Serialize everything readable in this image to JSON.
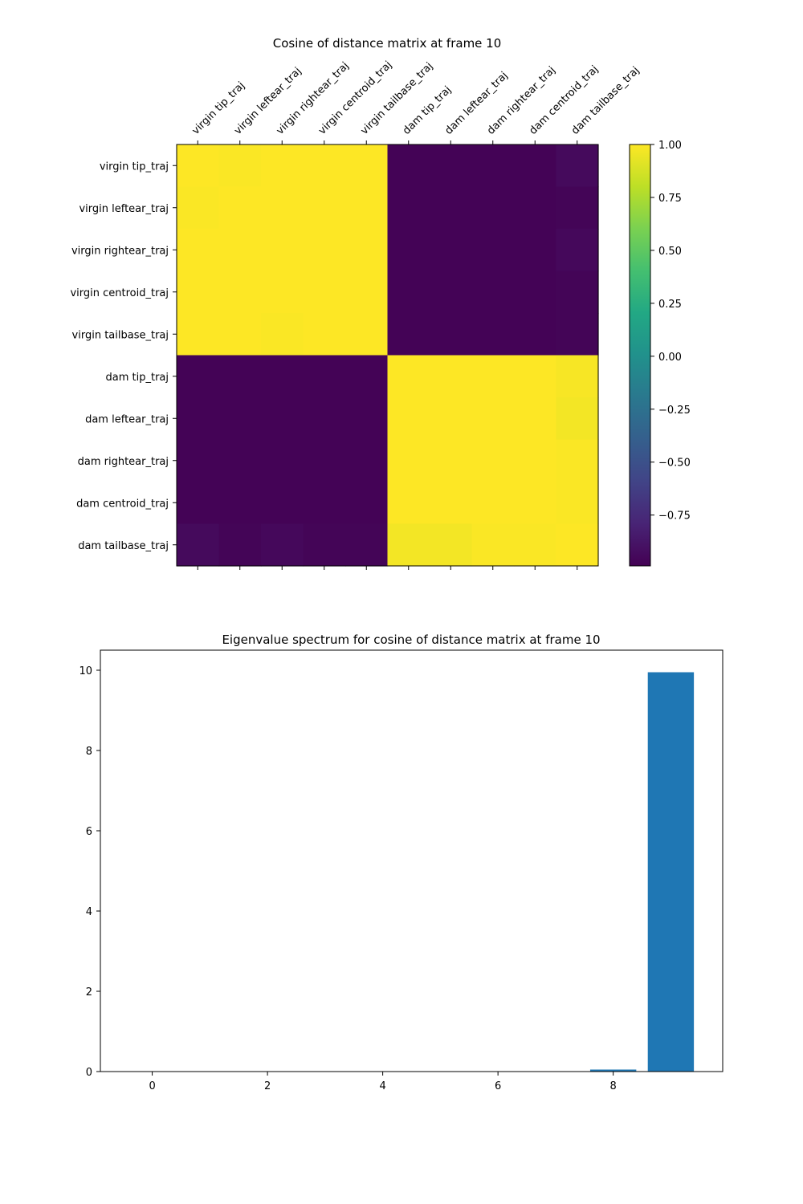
{
  "chart_data": [
    {
      "type": "heatmap",
      "title": "Cosine of distance matrix at frame 10",
      "labels": [
        "virgin tip_traj",
        "virgin leftear_traj",
        "virgin rightear_traj",
        "virgin centroid_traj",
        "virgin tailbase_traj",
        "dam tip_traj",
        "dam leftear_traj",
        "dam rightear_traj",
        "dam centroid_traj",
        "dam tailbase_traj"
      ],
      "matrix": [
        [
          1.0,
          0.99,
          1.0,
          1.0,
          1.0,
          -0.99,
          -0.99,
          -0.99,
          -0.99,
          -0.95
        ],
        [
          0.99,
          1.0,
          1.0,
          1.0,
          1.0,
          -0.99,
          -0.99,
          -0.99,
          -0.99,
          -0.98
        ],
        [
          1.0,
          1.0,
          1.0,
          1.0,
          1.0,
          -0.99,
          -0.99,
          -0.99,
          -0.99,
          -0.96
        ],
        [
          1.0,
          1.0,
          1.0,
          1.0,
          1.0,
          -0.99,
          -0.99,
          -0.99,
          -0.99,
          -0.98
        ],
        [
          1.0,
          1.0,
          0.99,
          1.0,
          1.0,
          -0.99,
          -0.99,
          -0.99,
          -0.99,
          -0.98
        ],
        [
          -0.99,
          -0.99,
          -0.99,
          -0.99,
          -0.99,
          1.0,
          1.0,
          1.0,
          1.0,
          0.98
        ],
        [
          -0.99,
          -0.99,
          -0.99,
          -0.99,
          -0.99,
          1.0,
          1.0,
          1.0,
          1.0,
          0.97
        ],
        [
          -0.99,
          -0.99,
          -0.99,
          -0.99,
          -0.99,
          1.0,
          1.0,
          1.0,
          1.0,
          0.99
        ],
        [
          -0.99,
          -0.99,
          -0.99,
          -0.99,
          -0.99,
          1.0,
          1.0,
          1.0,
          1.0,
          0.99
        ],
        [
          -0.95,
          -0.98,
          -0.96,
          -0.98,
          -0.98,
          0.97,
          0.97,
          0.99,
          0.99,
          1.0
        ]
      ],
      "colormap": "viridis",
      "vmin": -1.0,
      "vmax": 1.0,
      "colorbar_ticks": [
        1.0,
        0.75,
        0.5,
        0.25,
        0.0,
        -0.25,
        -0.5,
        -0.75
      ],
      "colorbar_tick_labels": [
        "1.00",
        "0.75",
        "0.50",
        "0.25",
        "0.00",
        "−0.25",
        "−0.50",
        "−0.75"
      ],
      "x_tick_position": "top",
      "grid": false
    },
    {
      "type": "bar",
      "title": "Eigenvalue spectrum for cosine of distance matrix at frame 10",
      "x": [
        0,
        1,
        2,
        3,
        4,
        5,
        6,
        7,
        8,
        9
      ],
      "values": [
        0,
        0,
        0,
        0,
        0,
        0,
        0,
        0,
        0.05,
        9.95
      ],
      "xlim": [
        -0.9,
        9.9
      ],
      "ylim": [
        0,
        10.5
      ],
      "xticks": [
        0,
        2,
        4,
        6,
        8
      ],
      "yticks": [
        0,
        2,
        4,
        6,
        8,
        10
      ],
      "bar_color": "#1f77b4",
      "grid": false,
      "xlabel": "",
      "ylabel": ""
    }
  ]
}
